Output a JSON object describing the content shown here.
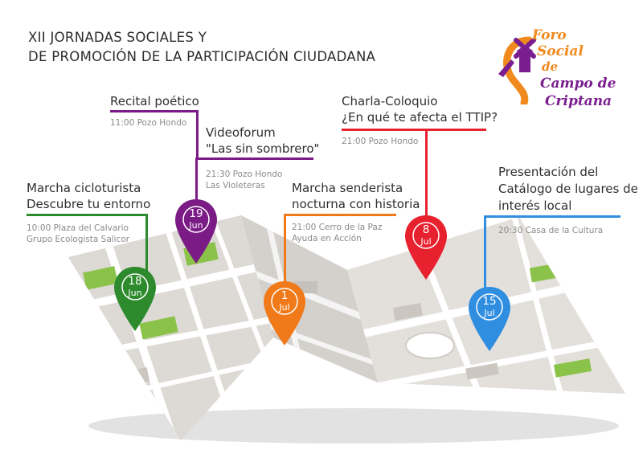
{
  "header": {
    "line1": "XII JORNADAS SOCIALES Y",
    "line2": "DE PROMOCIÓN DE LA PARTICIPACIÓN CIUDADANA"
  },
  "logo": {
    "icon": "windmill-icon",
    "line1": "Foro",
    "line2": "Social",
    "line3": "de",
    "line4": "Campo de",
    "line5": "Criptana"
  },
  "colors": {
    "green": "#2d8a2d",
    "purple": "#7b1b85",
    "orange": "#f07a1a",
    "red": "#e8212e",
    "blue": "#2f8ee0"
  },
  "events": [
    {
      "key": "recital",
      "title1": "Recital poético",
      "title2": "",
      "detail1": "11:00 Pozo Hondo",
      "detail2": "",
      "day": "",
      "month": ""
    },
    {
      "key": "videoforum",
      "title1": "Videoforum",
      "title2": "\"Las sin sombrero\"",
      "detail1": "21:30 Pozo Hondo",
      "detail2": "Las Violeteras",
      "day": "19",
      "month": "Jun"
    },
    {
      "key": "marcha-ciclo",
      "title1": "Marcha cicloturista",
      "title2": "Descubre tu entorno",
      "detail1": "10:00 Plaza del Calvario",
      "detail2": "Grupo Ecologista Salicor",
      "day": "18",
      "month": "Jun"
    },
    {
      "key": "marcha-sender",
      "title1": "Marcha senderista",
      "title2": "nocturna con historia",
      "detail1": "21:00 Cerro de la Paz",
      "detail2": "Ayuda en Acción",
      "day": "1",
      "month": "Jul"
    },
    {
      "key": "charla",
      "title1": "Charla-Coloquio",
      "title2": "¿En qué te afecta el TTIP?",
      "detail1": "21:00 Pozo Hondo",
      "detail2": "",
      "day": "8",
      "month": "Jul"
    },
    {
      "key": "presentacion",
      "title1": "Presentación del",
      "title2": "Catálogo de lugares de",
      "title3": "interés local",
      "detail1": "20:30 Casa de la Cultura",
      "detail2": "",
      "day": "15",
      "month": "Jul"
    }
  ]
}
